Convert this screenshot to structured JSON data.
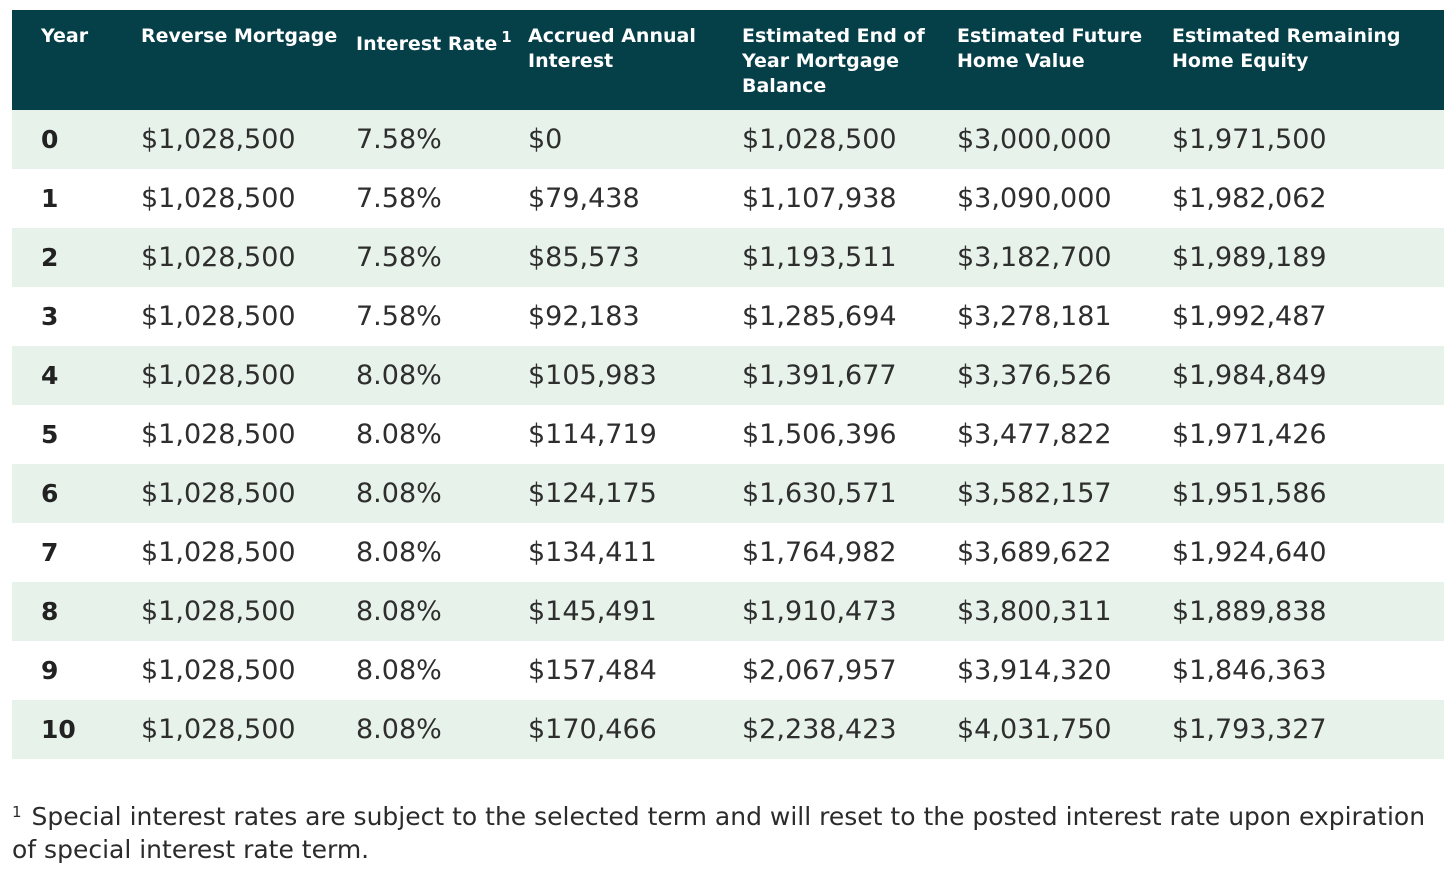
{
  "table": {
    "headers": {
      "year": "Year",
      "reverse_mortgage": "Reverse Mortgage",
      "interest_rate": "Interest Rate",
      "interest_rate_note": "1",
      "accrued_annual_interest": "Accrued Annual Interest",
      "end_balance": "Estimated End of Year Mortgage Balance",
      "future_home_value": "Estimated Future Home Value",
      "remaining_equity": "Estimated Remaining Home Equity"
    },
    "rows": [
      {
        "year": "0",
        "mortgage": "$1,028,500",
        "rate": "7.58%",
        "interest": "$0",
        "balance": "$1,028,500",
        "home_value": "$3,000,000",
        "equity": "$1,971,500"
      },
      {
        "year": "1",
        "mortgage": "$1,028,500",
        "rate": "7.58%",
        "interest": "$79,438",
        "balance": "$1,107,938",
        "home_value": "$3,090,000",
        "equity": "$1,982,062"
      },
      {
        "year": "2",
        "mortgage": "$1,028,500",
        "rate": "7.58%",
        "interest": "$85,573",
        "balance": "$1,193,511",
        "home_value": "$3,182,700",
        "equity": "$1,989,189"
      },
      {
        "year": "3",
        "mortgage": "$1,028,500",
        "rate": "7.58%",
        "interest": "$92,183",
        "balance": "$1,285,694",
        "home_value": "$3,278,181",
        "equity": "$1,992,487"
      },
      {
        "year": "4",
        "mortgage": "$1,028,500",
        "rate": "8.08%",
        "interest": "$105,983",
        "balance": "$1,391,677",
        "home_value": "$3,376,526",
        "equity": "$1,984,849"
      },
      {
        "year": "5",
        "mortgage": "$1,028,500",
        "rate": "8.08%",
        "interest": "$114,719",
        "balance": "$1,506,396",
        "home_value": "$3,477,822",
        "equity": "$1,971,426"
      },
      {
        "year": "6",
        "mortgage": "$1,028,500",
        "rate": "8.08%",
        "interest": "$124,175",
        "balance": "$1,630,571",
        "home_value": "$3,582,157",
        "equity": "$1,951,586"
      },
      {
        "year": "7",
        "mortgage": "$1,028,500",
        "rate": "8.08%",
        "interest": "$134,411",
        "balance": "$1,764,982",
        "home_value": "$3,689,622",
        "equity": "$1,924,640"
      },
      {
        "year": "8",
        "mortgage": "$1,028,500",
        "rate": "8.08%",
        "interest": "$145,491",
        "balance": "$1,910,473",
        "home_value": "$3,800,311",
        "equity": "$1,889,838"
      },
      {
        "year": "9",
        "mortgage": "$1,028,500",
        "rate": "8.08%",
        "interest": "$157,484",
        "balance": "$2,067,957",
        "home_value": "$3,914,320",
        "equity": "$1,846,363"
      },
      {
        "year": "10",
        "mortgage": "$1,028,500",
        "rate": "8.08%",
        "interest": "$170,466",
        "balance": "$2,238,423",
        "home_value": "$4,031,750",
        "equity": "$1,793,327"
      }
    ]
  },
  "footnote": {
    "marker": "1",
    "text": "Special interest rates are subject to the selected term and will reset to the posted interest rate upon expiration of special interest rate term."
  },
  "colors": {
    "header_bg": "#053f48",
    "stripe_bg": "#e7f2ea"
  }
}
